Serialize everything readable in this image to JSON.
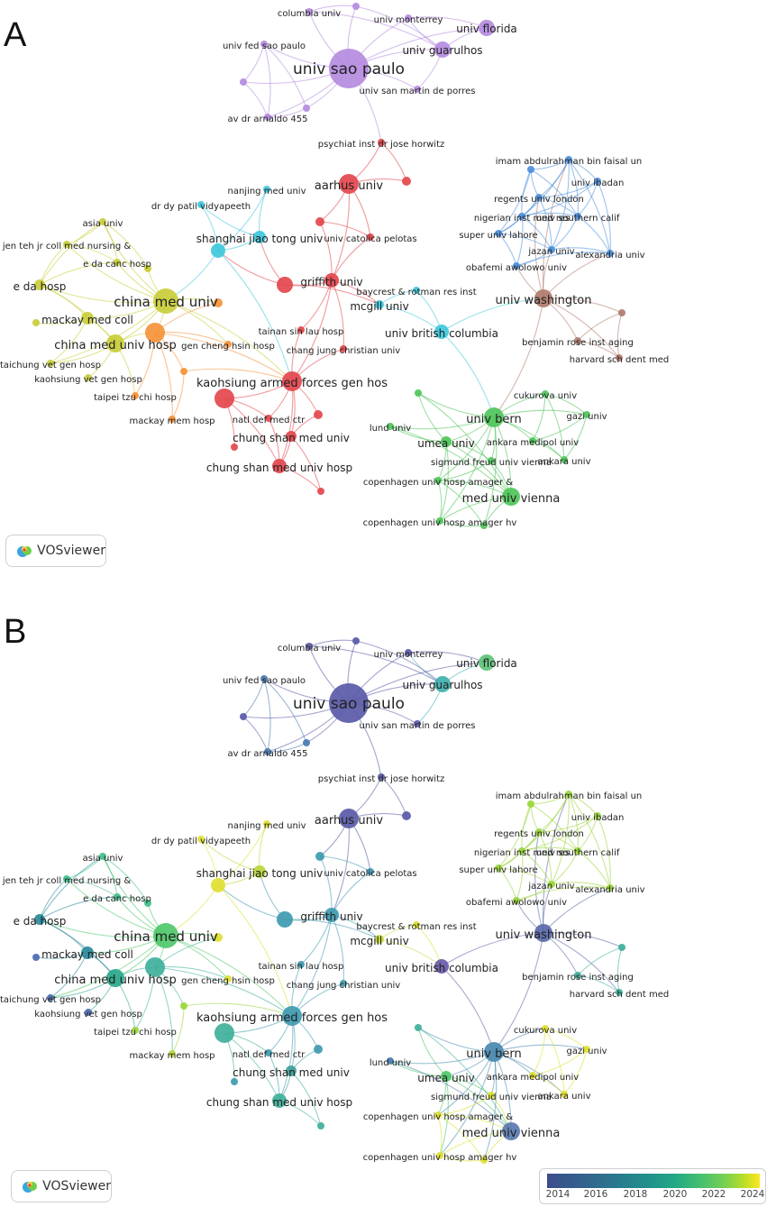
{
  "panels": [
    {
      "letter": "A",
      "badge_label": "VOSviewer",
      "color_mode": "cluster"
    },
    {
      "letter": "B",
      "badge_label": "VOSviewer",
      "color_mode": "year"
    }
  ],
  "legend": {
    "ticks": [
      "2014",
      "2016",
      "2018",
      "2020",
      "2022",
      "2024"
    ],
    "gradient": [
      "#3b4d8c",
      "#2a788e",
      "#22a884",
      "#7ad151",
      "#fde725"
    ]
  },
  "clusters": {
    "purple": "#b58be0",
    "red": "#e3474d",
    "yellow": "#c9cd3a",
    "orange": "#f5923a",
    "cyan": "#3ec8dc",
    "blue": "#4d8fdc",
    "brown": "#b07c6e",
    "green": "#4fc55a"
  },
  "nodes": [
    {
      "id": "usp",
      "label": "univ sao paulo",
      "c": "purple",
      "yr": "#5a5aa8"
    },
    {
      "id": "columbia",
      "label": "columbia univ",
      "c": "purple",
      "yr": "#5a5aa8"
    },
    {
      "id": "monterrey",
      "label": "univ monterrey",
      "c": "purple",
      "yr": "#5a5aa8"
    },
    {
      "id": "florida",
      "label": "univ florida",
      "c": "purple",
      "yr": "#5ec47a"
    },
    {
      "id": "fedsp",
      "label": "univ fed sao paulo",
      "c": "purple",
      "yr": "#4a7ab0"
    },
    {
      "id": "guarulhos",
      "label": "univ guarulhos",
      "c": "purple",
      "yr": "#3fb1b0"
    },
    {
      "id": "sanmartin",
      "label": "univ san martin de porres",
      "c": "purple",
      "yr": "#5a5aa8"
    },
    {
      "id": "arnaldo",
      "label": "av dr arnaldo 455",
      "c": "purple",
      "yr": "#4a7ab0"
    },
    {
      "id": "psychiat",
      "label": "psychiat inst dr jose horwitz",
      "c": "red",
      "yr": "#5a5aa8"
    },
    {
      "id": "aarhus",
      "label": "aarhus univ",
      "c": "red",
      "yr": "#5a5aa8"
    },
    {
      "id": "nanjing",
      "label": "nanjing med univ",
      "c": "cyan",
      "yr": "#dfe032"
    },
    {
      "id": "patil",
      "label": "dr dy patil vidyapeeth",
      "c": "cyan",
      "yr": "#dfe032"
    },
    {
      "id": "shanghai",
      "label": "shanghai jiao tong univ",
      "c": "cyan",
      "yr": "#b9d63a"
    },
    {
      "id": "catolica",
      "label": "univ catolica pelotas",
      "c": "red",
      "yr": "#3f9ab0"
    },
    {
      "id": "griffith",
      "label": "griffith univ",
      "c": "red",
      "yr": "#3f9ab0"
    },
    {
      "id": "mcgill",
      "label": "mcgill univ",
      "c": "cyan",
      "yr": "#c8d83a"
    },
    {
      "id": "baycrest",
      "label": "baycrest & rotman res inst",
      "c": "cyan",
      "yr": "#dfe032"
    },
    {
      "id": "ubc",
      "label": "univ british columbia",
      "c": "cyan",
      "yr": "#6a5aa8"
    },
    {
      "id": "tainan",
      "label": "tainan sin lau hosp",
      "c": "red",
      "yr": "#3f9ab0"
    },
    {
      "id": "changjung",
      "label": "chang jung christian univ",
      "c": "red",
      "yr": "#3f9ab0"
    },
    {
      "id": "asia",
      "label": "asia univ",
      "c": "yellow",
      "yr": "#3fc08a"
    },
    {
      "id": "jenteh",
      "label": "jen teh jr coll med nursing &",
      "c": "yellow",
      "yr": "#3fc08a"
    },
    {
      "id": "edacanc",
      "label": "e da canc hosp",
      "c": "yellow",
      "yr": "#3fc08a"
    },
    {
      "id": "eda",
      "label": "e da hosp",
      "c": "yellow",
      "yr": "#2a8a9a"
    },
    {
      "id": "cmu",
      "label": "china med univ",
      "c": "yellow",
      "yr": "#4fc86a"
    },
    {
      "id": "mackay",
      "label": "mackay med coll",
      "c": "yellow",
      "yr": "#2a8a9a"
    },
    {
      "id": "cmuh",
      "label": "china med univ hosp",
      "c": "yellow",
      "yr": "#2aa88a"
    },
    {
      "id": "genc",
      "label": "gen cheng hsin hosp",
      "c": "orange",
      "yr": "#dfe032"
    },
    {
      "id": "taichung",
      "label": "taichung vet gen hosp",
      "c": "yellow",
      "yr": "#4a6ab0"
    },
    {
      "id": "kaohvet",
      "label": "kaohsiung vet gen hosp",
      "c": "yellow",
      "yr": "#4a6ab0"
    },
    {
      "id": "taipei",
      "label": "taipei tzu chi hosp",
      "c": "orange",
      "yr": "#9ad63a"
    },
    {
      "id": "mackaymem",
      "label": "mackay mem hosp",
      "c": "orange",
      "yr": "#b9d63a"
    },
    {
      "id": "kafgh",
      "label": "kaohsiung armed forces gen hos",
      "c": "red",
      "yr": "#3f9ab0"
    },
    {
      "id": "natl",
      "label": "natl def med ctr",
      "c": "red",
      "yr": "#3f9ab0"
    },
    {
      "id": "csmu",
      "label": "chung shan med univ",
      "c": "red",
      "yr": "#3fa09a"
    },
    {
      "id": "csmuh",
      "label": "chung shan med univ hosp",
      "c": "red",
      "yr": "#3fb09a"
    },
    {
      "id": "imam",
      "label": "imam abdulrahman bin faisal un",
      "c": "blue",
      "yr": "#9ad63a"
    },
    {
      "id": "ibadan",
      "label": "univ ibadan",
      "c": "blue",
      "yr": "#9ad63a"
    },
    {
      "id": "regents",
      "label": "regents univ london",
      "c": "blue",
      "yr": "#9ad63a"
    },
    {
      "id": "nigerian",
      "label": "nigerian inst med res",
      "c": "blue",
      "yr": "#9ad63a"
    },
    {
      "id": "usc",
      "label": "univ southern calif",
      "c": "blue",
      "yr": "#9ad63a"
    },
    {
      "id": "superlahore",
      "label": "super univ lahore",
      "c": "blue",
      "yr": "#9ad63a"
    },
    {
      "id": "jazan",
      "label": "jazan univ",
      "c": "blue",
      "yr": "#9ad63a"
    },
    {
      "id": "alexandria",
      "label": "alexandria univ",
      "c": "blue",
      "yr": "#9ad63a"
    },
    {
      "id": "obafemi",
      "label": "obafemi awolowo univ",
      "c": "blue",
      "yr": "#9ad63a"
    },
    {
      "id": "uw",
      "label": "univ washington",
      "c": "brown",
      "yr": "#5a6aa8"
    },
    {
      "id": "benjamin",
      "label": "benjamin rose inst aging",
      "c": "brown",
      "yr": "#3fb09a"
    },
    {
      "id": "harvard",
      "label": "harvard sch dent med",
      "c": "brown",
      "yr": "#3fb09a"
    },
    {
      "id": "cukurova",
      "label": "cukurova univ",
      "c": "green",
      "yr": "#dfe032"
    },
    {
      "id": "bern",
      "label": "univ bern",
      "c": "green",
      "yr": "#4a8ab0"
    },
    {
      "id": "gazi",
      "label": "gazi univ",
      "c": "green",
      "yr": "#dfe032"
    },
    {
      "id": "lund",
      "label": "lund univ",
      "c": "green",
      "yr": "#4a7ab0"
    },
    {
      "id": "umea",
      "label": "umea univ",
      "c": "green",
      "yr": "#4fc86a"
    },
    {
      "id": "ankmed",
      "label": "ankara medipol univ",
      "c": "green",
      "yr": "#dfe032"
    },
    {
      "id": "ankara",
      "label": "ankara univ",
      "c": "green",
      "yr": "#dfe032"
    },
    {
      "id": "freud",
      "label": "sigmund freud univ vienna",
      "c": "green",
      "yr": "#dfe032"
    },
    {
      "id": "copen1",
      "label": "copenhagen univ hosp amager &",
      "c": "green",
      "yr": "#dfe032"
    },
    {
      "id": "muv",
      "label": "med univ vienna",
      "c": "green",
      "yr": "#5a7ab0"
    },
    {
      "id": "copen2",
      "label": "copenhagen univ hosp amager hv",
      "c": "green",
      "yr": "#dfe032"
    },
    {
      "id": "u1",
      "label": "",
      "c": "purple",
      "yr": "#5a5aa8"
    },
    {
      "id": "u2",
      "label": "",
      "c": "purple",
      "yr": "#5a5aa8"
    },
    {
      "id": "u3",
      "label": "",
      "c": "purple",
      "yr": "#4a7ab0"
    },
    {
      "id": "u4",
      "label": "",
      "c": "red",
      "yr": "#5a5aa8"
    },
    {
      "id": "u5",
      "label": "",
      "c": "cyan",
      "yr": "#dfe032"
    },
    {
      "id": "u6",
      "label": "",
      "c": "red",
      "yr": "#3f9ab0"
    },
    {
      "id": "u7",
      "label": "",
      "c": "red",
      "yr": "#3f9ab0"
    },
    {
      "id": "u8",
      "label": "",
      "c": "red",
      "yr": "#3fb09a"
    },
    {
      "id": "u9",
      "label": "",
      "c": "orange",
      "yr": "#dfe032"
    },
    {
      "id": "u10",
      "label": "",
      "c": "orange",
      "yr": "#9ad63a"
    },
    {
      "id": "u11",
      "label": "",
      "c": "yellow",
      "yr": "#3fc08a"
    },
    {
      "id": "u12",
      "label": "",
      "c": "yellow",
      "yr": "#4a6ab0"
    },
    {
      "id": "u13",
      "label": "",
      "c": "green",
      "yr": "#3fb09a"
    },
    {
      "id": "u14",
      "label": "",
      "c": "green",
      "yr": "#dfe032"
    },
    {
      "id": "u15",
      "label": "",
      "c": "brown",
      "yr": "#3fb09a"
    },
    {
      "id": "u16",
      "label": "",
      "c": "blue",
      "yr": "#9ad63a"
    }
  ]
}
